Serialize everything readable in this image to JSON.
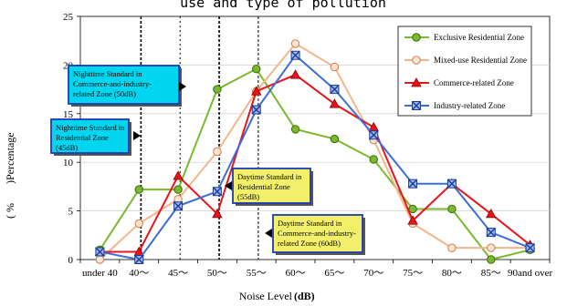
{
  "chart_data": {
    "type": "line",
    "title": "use and type of pollution",
    "xlabel": "Noise Level",
    "xlabel_unit": "(dB)",
    "ylabel_left": "( %",
    "ylabel_right": ")Percentage",
    "categories": [
      "under 40",
      "40～",
      "45～",
      "50～",
      "55～",
      "60～",
      "65～",
      "70～",
      "75～",
      "80～",
      "85～",
      "90and over"
    ],
    "ylim": [
      0,
      25
    ],
    "yticks": [
      0,
      5,
      10,
      15,
      20,
      25
    ],
    "legend_position": "top-right",
    "series": [
      {
        "name": "Exclusive Residential Zone",
        "color": "#7ab82e",
        "marker": "circle",
        "values": [
          1.0,
          7.2,
          7.2,
          17.5,
          19.6,
          13.4,
          12.4,
          10.3,
          5.2,
          5.2,
          0.0,
          1.0
        ]
      },
      {
        "name": "Mixed-use Residential Zone",
        "color": "#f6b48a",
        "marker": "circle",
        "values": [
          0.0,
          3.7,
          6.2,
          11.1,
          17.3,
          22.2,
          19.8,
          12.3,
          3.7,
          1.2,
          1.2,
          1.2
        ]
      },
      {
        "name": "Commerce-related Zone",
        "color": "#e8141a",
        "marker": "triangle",
        "values": [
          0.8,
          0.8,
          8.6,
          4.7,
          17.3,
          19.0,
          16.0,
          13.6,
          4.0,
          7.8,
          4.7,
          1.5
        ]
      },
      {
        "name": "Industry-related Zone",
        "color": "#3b6ed8",
        "marker": "x-square",
        "values": [
          0.8,
          0.0,
          5.5,
          7.0,
          15.4,
          21.0,
          17.5,
          12.8,
          7.8,
          7.8,
          2.8,
          1.2
        ]
      }
    ],
    "annotations": [
      {
        "lines": [
          "Nighttime Standard in",
          "Commerce-and-industry-",
          "related Zone (50dB)"
        ],
        "bg": "#00d6f0",
        "border": "#1f3bb0"
      },
      {
        "lines": [
          "Nighttime Standard in",
          "Residential Zone",
          "(45dB)"
        ],
        "bg": "#00d6f0",
        "border": "#1f3bb0"
      },
      {
        "lines": [
          "Daytime Standard in",
          "Residential Zone",
          "(55dB)"
        ],
        "bg": "#f2f06a",
        "border": "#1f3bb0"
      },
      {
        "lines": [
          "Daytime Standard in",
          "Commerce-and-industry-",
          "related Zone (60dB)"
        ],
        "bg": "#f2f06a",
        "border": "#1f3bb0"
      }
    ]
  }
}
